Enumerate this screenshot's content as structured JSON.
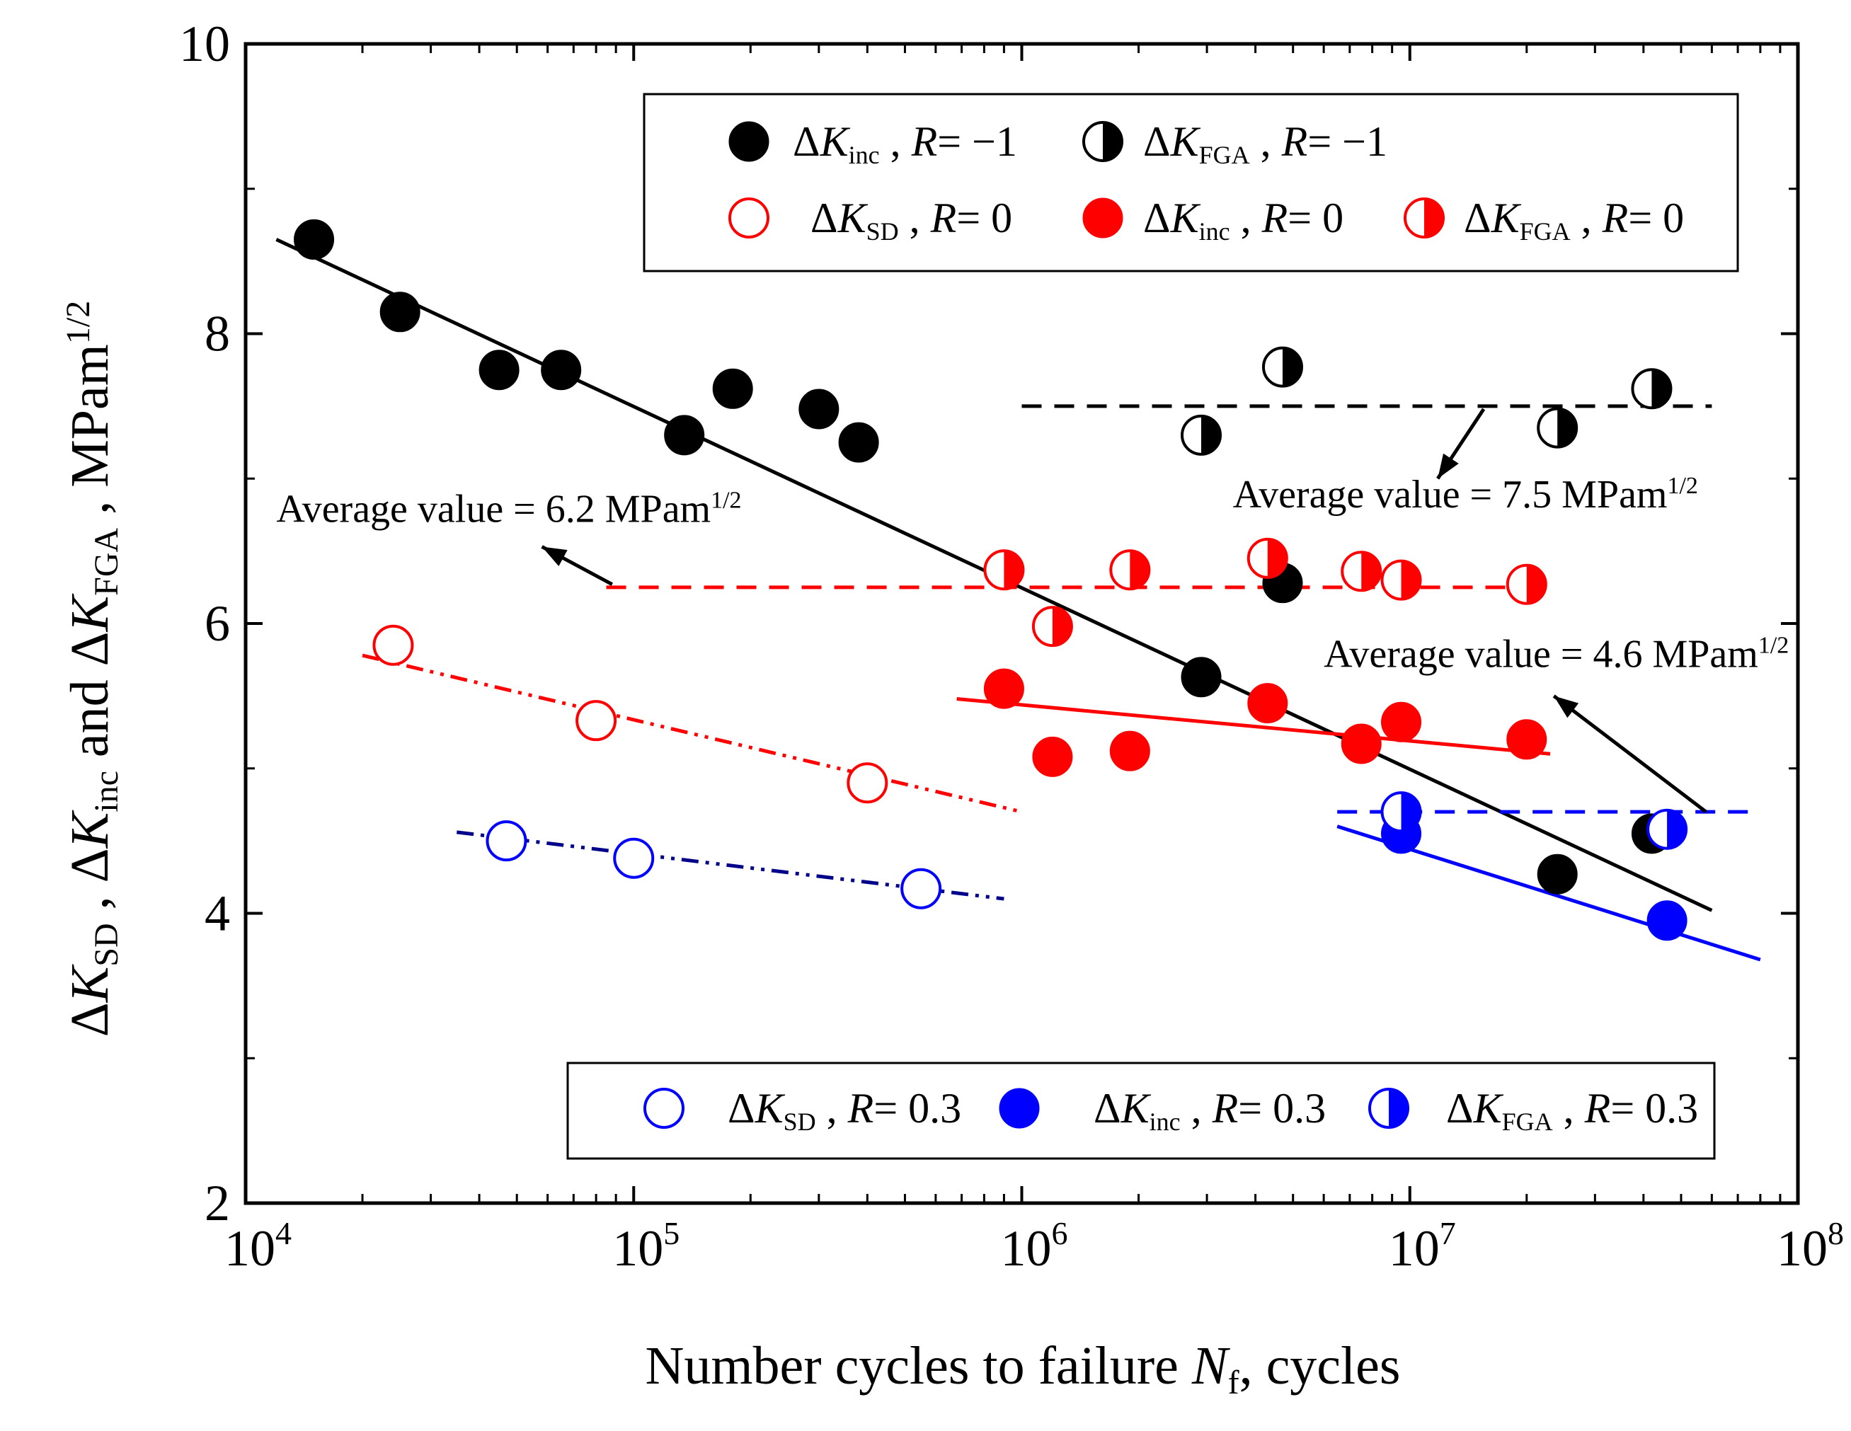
{
  "chart_data": {
    "type": "scatter",
    "xscale": "log",
    "xlim": [
      10000,
      100000000
    ],
    "ylim": [
      2,
      10
    ],
    "xlabel": {
      "main": "Number cycles to failure ",
      "var": "N",
      "sub": "f",
      "rest": ", cycles"
    },
    "ylabel": {
      "parts": [
        {
          "t": "Δ",
          "s": ""
        },
        {
          "t": "K",
          "s": "italic"
        },
        {
          "t": "SD",
          "s": "sub"
        },
        {
          "t": " , Δ",
          "s": ""
        },
        {
          "t": "K",
          "s": "italic"
        },
        {
          "t": "inc",
          "s": "sub"
        },
        {
          "t": " and Δ",
          "s": ""
        },
        {
          "t": "K",
          "s": "italic"
        },
        {
          "t": "FGA",
          "s": "sub"
        },
        {
          "t": " , MPam",
          "s": ""
        },
        {
          "t": "1/2",
          "s": "sup"
        }
      ]
    },
    "xticks": [
      {
        "value": 10000,
        "base": "10",
        "exp": "4"
      },
      {
        "value": 100000,
        "base": "10",
        "exp": "5"
      },
      {
        "value": 1000000,
        "base": "10",
        "exp": "6"
      },
      {
        "value": 10000000,
        "base": "10",
        "exp": "7"
      },
      {
        "value": 100000000,
        "base": "10",
        "exp": "8"
      }
    ],
    "yticks": [
      {
        "value": 2,
        "label": "2"
      },
      {
        "value": 4,
        "label": "4"
      },
      {
        "value": 6,
        "label": "6"
      },
      {
        "value": 8,
        "label": "8"
      },
      {
        "value": 10,
        "label": "10"
      }
    ],
    "colors": {
      "black": "#000000",
      "red": "#ff0000",
      "blue": "#0000ff",
      "navy": "#00008b"
    },
    "series": [
      {
        "name": "ΔK_inc, R= −1",
        "color": "#000000",
        "marker": "filled",
        "x": [
          15000,
          25000,
          45000,
          65000,
          135000,
          180000,
          300000,
          380000,
          4700000,
          2900000,
          24000000,
          42000000
        ],
        "y": [
          8.65,
          8.15,
          7.75,
          7.75,
          7.3,
          7.62,
          7.48,
          7.25,
          6.28,
          5.63,
          4.27,
          4.55
        ]
      },
      {
        "name": "ΔK_FGA, R= −1",
        "color": "#000000",
        "marker": "half",
        "x": [
          2900000,
          4700000,
          24000000,
          42000000
        ],
        "y": [
          7.3,
          7.77,
          7.35,
          7.62
        ]
      },
      {
        "name": "ΔK_SD, R= 0",
        "color": "#ff0000",
        "marker": "open",
        "x": [
          24000,
          80000,
          400000
        ],
        "y": [
          5.85,
          5.33,
          4.9
        ]
      },
      {
        "name": "ΔK_inc, R= 0",
        "color": "#ff0000",
        "marker": "filled",
        "x": [
          900000,
          1200000,
          1900000,
          4300000,
          7500000,
          9500000,
          20000000
        ],
        "y": [
          5.55,
          5.08,
          5.12,
          5.45,
          5.17,
          5.32,
          5.2
        ]
      },
      {
        "name": "ΔK_FGA, R= 0",
        "color": "#ff0000",
        "marker": "half",
        "x": [
          900000,
          1200000,
          1900000,
          4300000,
          7500000,
          9500000,
          20000000
        ],
        "y": [
          6.37,
          5.98,
          6.37,
          6.45,
          6.36,
          6.3,
          6.27
        ]
      },
      {
        "name": "ΔK_SD, R= 0.3",
        "color": "#0000ff",
        "marker": "open",
        "x": [
          47000,
          100000,
          550000
        ],
        "y": [
          4.5,
          4.38,
          4.17
        ]
      },
      {
        "name": "ΔK_inc, R= 0.3",
        "color": "#0000ff",
        "marker": "filled",
        "x": [
          9500000,
          46000000
        ],
        "y": [
          4.55,
          3.95
        ]
      },
      {
        "name": "ΔK_FGA, R= 0.3",
        "color": "#0000ff",
        "marker": "half",
        "x": [
          9500000,
          46000000
        ],
        "y": [
          4.7,
          4.58
        ]
      }
    ],
    "fit_lines": [
      {
        "name": "ΔK_inc R=-1 fit",
        "color": "#000000",
        "dash": "",
        "x": [
          12000,
          60000000
        ],
        "y": [
          8.65,
          4.02
        ]
      },
      {
        "name": "ΔK_FGA R=-1 average",
        "color": "#000000",
        "dash": "28,18",
        "x": [
          1000000,
          60000000
        ],
        "y": [
          7.5,
          7.5
        ]
      },
      {
        "name": "ΔK_FGA R=0 average",
        "color": "#ff0000",
        "dash": "28,18",
        "x": [
          85000,
          23000000
        ],
        "y": [
          6.25,
          6.25
        ]
      },
      {
        "name": "ΔK_inc R=0 fit",
        "color": "#ff0000",
        "dash": "",
        "x": [
          680000,
          23000000
        ],
        "y": [
          5.48,
          5.1
        ]
      },
      {
        "name": "ΔK_SD R=0 fit",
        "color": "#ff0000",
        "dash": "24,10,5,10,5,10",
        "x": [
          20000,
          1000000
        ],
        "y": [
          5.78,
          4.7
        ]
      },
      {
        "name": "ΔK_SD R=0.3 fit",
        "color": "#00008b",
        "dash": "24,10,5,10,5,10",
        "x": [
          35000,
          900000
        ],
        "y": [
          4.56,
          4.1
        ]
      },
      {
        "name": "ΔK_FGA R=0.3 average",
        "color": "#0000ff",
        "dash": "28,18",
        "x": [
          6500000,
          80000000
        ],
        "y": [
          4.7,
          4.7
        ]
      },
      {
        "name": "ΔK_inc R=0.3 fit",
        "color": "#0000ff",
        "dash": "",
        "x": [
          6500000,
          80000000
        ],
        "y": [
          4.6,
          3.68
        ]
      }
    ],
    "annotations": [
      {
        "text": "Average value = 6.2 MPam",
        "sup": "1/2",
        "x": 12000,
        "y": 6.7,
        "arrow_from": [
          88000,
          6.27
        ],
        "arrow_to": [
          58000,
          6.53
        ]
      },
      {
        "text": "Average value = 7.5 MPam",
        "sup": "1/2",
        "x": 3500000,
        "y": 6.8,
        "arrow_from": [
          15500000,
          7.48
        ],
        "arrow_to": [
          11800000,
          7.0
        ]
      },
      {
        "text": "Average value = 4.6 MPam",
        "sup": "1/2",
        "x": 6000000,
        "y": 5.7,
        "arrow_from": [
          58000000,
          4.7
        ],
        "arrow_to": [
          23500000,
          5.5
        ]
      }
    ],
    "legend_top": {
      "placement": "top-right",
      "rows": [
        [
          {
            "marker": "filled",
            "color": "#000000",
            "parts": [
              {
                "t": "Δ",
                "s": ""
              },
              {
                "t": "K",
                "s": "italic"
              },
              {
                "t": "inc",
                "s": "sub"
              },
              {
                "t": " , ",
                "s": ""
              },
              {
                "t": "R",
                "s": "italic"
              },
              {
                "t": "= −1",
                "s": ""
              }
            ]
          },
          {
            "marker": "half",
            "color": "#000000",
            "parts": [
              {
                "t": "Δ",
                "s": ""
              },
              {
                "t": "K",
                "s": "italic"
              },
              {
                "t": "FGA",
                "s": "sub"
              },
              {
                "t": " , ",
                "s": ""
              },
              {
                "t": "R",
                "s": "italic"
              },
              {
                "t": "= −1",
                "s": ""
              }
            ]
          }
        ],
        [
          {
            "marker": "open",
            "color": "#ff0000",
            "parts": [
              {
                "t": "Δ",
                "s": ""
              },
              {
                "t": "K",
                "s": "italic"
              },
              {
                "t": "SD",
                "s": "sub"
              },
              {
                "t": " , ",
                "s": ""
              },
              {
                "t": "R",
                "s": "italic"
              },
              {
                "t": "= 0",
                "s": ""
              }
            ]
          },
          {
            "marker": "filled",
            "color": "#ff0000",
            "parts": [
              {
                "t": "Δ",
                "s": ""
              },
              {
                "t": "K",
                "s": "italic"
              },
              {
                "t": "inc",
                "s": "sub"
              },
              {
                "t": " , ",
                "s": ""
              },
              {
                "t": "R",
                "s": "italic"
              },
              {
                "t": "= 0",
                "s": ""
              }
            ]
          },
          {
            "marker": "half",
            "color": "#ff0000",
            "parts": [
              {
                "t": "Δ",
                "s": ""
              },
              {
                "t": "K",
                "s": "italic"
              },
              {
                "t": "FGA",
                "s": "sub"
              },
              {
                "t": " , ",
                "s": ""
              },
              {
                "t": "R",
                "s": "italic"
              },
              {
                "t": "= 0",
                "s": ""
              }
            ]
          }
        ]
      ]
    },
    "legend_bottom": {
      "placement": "bottom-right",
      "rows": [
        [
          {
            "marker": "open",
            "color": "#0000ff",
            "parts": [
              {
                "t": "Δ",
                "s": ""
              },
              {
                "t": "K",
                "s": "italic"
              },
              {
                "t": "SD",
                "s": "sub"
              },
              {
                "t": " , ",
                "s": ""
              },
              {
                "t": "R",
                "s": "italic"
              },
              {
                "t": "= 0.3",
                "s": ""
              }
            ]
          },
          {
            "marker": "filled",
            "color": "#0000ff",
            "parts": [
              {
                "t": "Δ",
                "s": ""
              },
              {
                "t": "K",
                "s": "italic"
              },
              {
                "t": "inc",
                "s": "sub"
              },
              {
                "t": " , ",
                "s": ""
              },
              {
                "t": "R",
                "s": "italic"
              },
              {
                "t": "= 0.3",
                "s": ""
              }
            ]
          },
          {
            "marker": "half",
            "color": "#0000ff",
            "parts": [
              {
                "t": "Δ",
                "s": ""
              },
              {
                "t": "K",
                "s": "italic"
              },
              {
                "t": "FGA",
                "s": "sub"
              },
              {
                "t": " , ",
                "s": ""
              },
              {
                "t": "R",
                "s": "italic"
              },
              {
                "t": "= 0.3",
                "s": ""
              }
            ]
          }
        ]
      ]
    }
  }
}
